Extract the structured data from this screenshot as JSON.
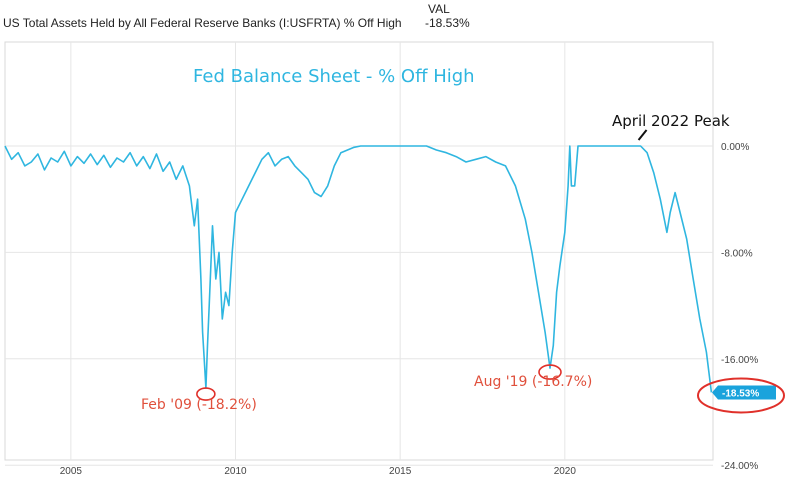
{
  "header": {
    "series_title": "US Total Assets Held by All Federal Reserve Banks (I:USFRTA) % Off High",
    "val_label": "VAL",
    "val_value": "-18.53%"
  },
  "chart_data": {
    "type": "line",
    "title": "Fed Balance Sheet - % Off High",
    "xlabel": "",
    "ylabel": "",
    "xlim": [
      2003.0,
      2024.5
    ],
    "ylim": [
      -24,
      3
    ],
    "y_ticks": [
      {
        "value": 0,
        "label": "0.00%"
      },
      {
        "value": -8,
        "label": "-8.00%"
      },
      {
        "value": -16,
        "label": "-16.00%"
      },
      {
        "value": -24,
        "label": "-24.00%"
      }
    ],
    "x_ticks": [
      {
        "value": 2005,
        "label": "2005"
      },
      {
        "value": 2010,
        "label": "2010"
      },
      {
        "value": 2015,
        "label": "2015"
      },
      {
        "value": 2020,
        "label": "2020"
      }
    ],
    "grid": true,
    "color": "#2fb6e0",
    "series": [
      {
        "x": [
          2003.0,
          2003.2,
          2003.4,
          2003.6,
          2003.8,
          2004.0,
          2004.2,
          2004.4,
          2004.6,
          2004.8,
          2005.0,
          2005.2,
          2005.4,
          2005.6,
          2005.8,
          2006.0,
          2006.2,
          2006.4,
          2006.6,
          2006.8,
          2007.0,
          2007.2,
          2007.4,
          2007.6,
          2007.8,
          2008.0,
          2008.2,
          2008.4,
          2008.6,
          2008.75,
          2008.85,
          2008.95,
          2009.0,
          2009.05,
          2009.1,
          2009.15,
          2009.2,
          2009.3,
          2009.4,
          2009.5,
          2009.6,
          2009.7,
          2009.8,
          2009.9,
          2010.0,
          2010.2,
          2010.4,
          2010.6,
          2010.8,
          2011.0,
          2011.2,
          2011.4,
          2011.6,
          2011.8,
          2012.0,
          2012.2,
          2012.4,
          2012.6,
          2012.8,
          2013.0,
          2013.2,
          2013.4,
          2013.6,
          2013.8,
          2014.0,
          2014.3,
          2014.6,
          2014.9,
          2015.2,
          2015.5,
          2015.8,
          2016.1,
          2016.4,
          2016.7,
          2017.0,
          2017.3,
          2017.6,
          2017.9,
          2018.2,
          2018.5,
          2018.8,
          2019.0,
          2019.2,
          2019.4,
          2019.55,
          2019.65,
          2019.75,
          2019.85,
          2020.0,
          2020.1,
          2020.15,
          2020.2,
          2020.25,
          2020.3,
          2020.4,
          2020.5,
          2020.7,
          2020.9,
          2021.1,
          2021.3,
          2021.5,
          2021.7,
          2021.9,
          2022.1,
          2022.3,
          2022.5,
          2022.7,
          2022.9,
          2023.1,
          2023.2,
          2023.35,
          2023.5,
          2023.7,
          2023.9,
          2024.1,
          2024.3,
          2024.45
        ],
        "y": [
          0,
          -1,
          -0.5,
          -1.5,
          -1.2,
          -0.6,
          -1.8,
          -0.9,
          -1.2,
          -0.4,
          -1.5,
          -0.8,
          -1.3,
          -0.6,
          -1.4,
          -0.7,
          -1.6,
          -0.9,
          -1.2,
          -0.5,
          -1.5,
          -0.8,
          -1.7,
          -0.6,
          -1.9,
          -1.2,
          -2.5,
          -1.5,
          -3,
          -6,
          -4,
          -10,
          -14,
          -16,
          -18.2,
          -15,
          -12,
          -6,
          -10,
          -8,
          -13,
          -11,
          -12,
          -8,
          -5,
          -4,
          -3,
          -2,
          -1,
          -0.5,
          -1.5,
          -1,
          -0.8,
          -1.5,
          -2,
          -2.5,
          -3.5,
          -3.8,
          -3,
          -1.5,
          -0.5,
          -0.3,
          -0.1,
          0,
          0,
          0,
          0,
          0,
          0,
          0,
          0,
          -0.3,
          -0.5,
          -0.8,
          -1.2,
          -1,
          -0.8,
          -1.2,
          -1.5,
          -3,
          -5.5,
          -8,
          -11,
          -14,
          -16.7,
          -15,
          -11,
          -9,
          -6.5,
          -3,
          0,
          -3,
          -3,
          -3,
          0,
          0,
          0,
          0,
          0,
          0,
          0,
          0,
          0,
          0,
          0,
          -0.5,
          -2,
          -4,
          -6.5,
          -5,
          -3.5,
          -5,
          -7,
          -10,
          -13,
          -15.5,
          -18.53
        ]
      }
    ],
    "annotations": [
      {
        "text": "April 2022 Peak",
        "x": 2022.3,
        "y": 0
      },
      {
        "text": "Feb '09 (-18.2%)",
        "x": 2009.1,
        "y": -18.2
      },
      {
        "text": "Aug '19 (-16.7%)",
        "x": 2019.55,
        "y": -16.7
      }
    ],
    "last_value_label": "-18.53%"
  }
}
